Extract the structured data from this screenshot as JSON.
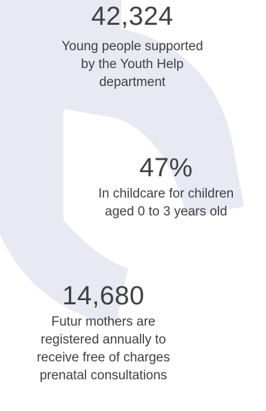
{
  "colors": {
    "background": "#ffffff",
    "ring": "#e8e9f3",
    "text": "#404040"
  },
  "stats": [
    {
      "value": "42,324",
      "label_lines": [
        "Young people supported",
        "by the Youth Help",
        "department"
      ]
    },
    {
      "value": "47%",
      "label_lines": [
        "In childcare for children",
        "aged 0 to 3 years old"
      ]
    },
    {
      "value": "14,680",
      "label_lines": [
        "Futur mothers are",
        "registered annually to",
        "receive free of charges",
        "prenatal consultations"
      ]
    }
  ]
}
